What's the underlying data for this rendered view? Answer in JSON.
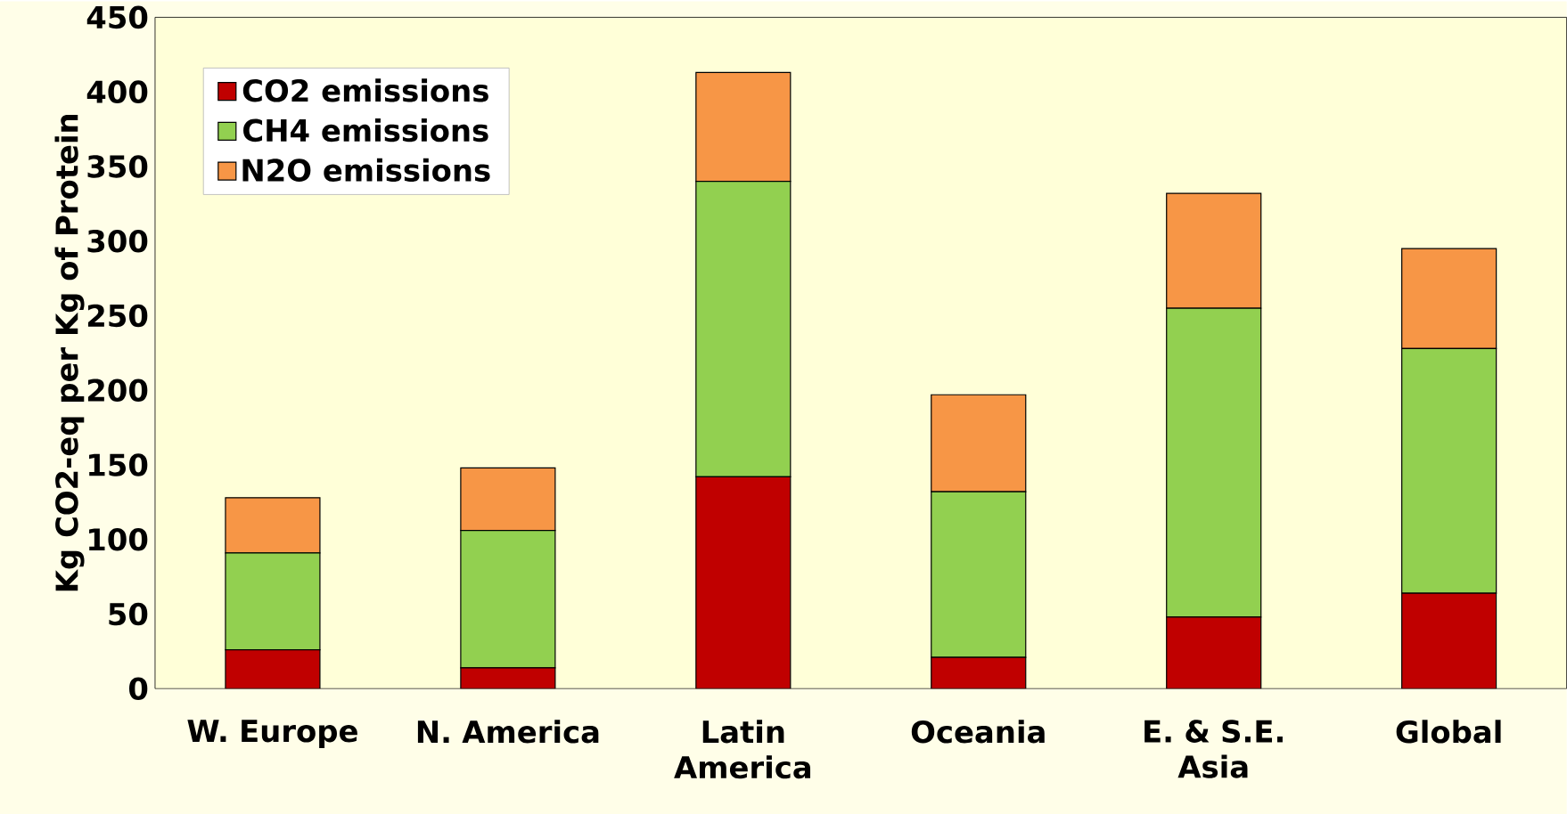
{
  "chart_data": {
    "type": "bar",
    "stacked": true,
    "ylabel": "Kg CO2-eq per Kg of Protein",
    "categories": [
      "W. Europe",
      "N. America",
      "Latin America",
      "Oceania",
      "E. & S.E. Asia",
      "Global"
    ],
    "series": [
      {
        "name": "CO2 emissions",
        "color": "#c00000",
        "values": [
          26,
          14,
          142,
          21,
          48,
          64
        ]
      },
      {
        "name": "CH4 emissions",
        "color": "#92d050",
        "values": [
          65,
          92,
          198,
          111,
          207,
          164
        ]
      },
      {
        "name": "N2O emissions",
        "color": "#f79646",
        "values": [
          37,
          42,
          73,
          65,
          77,
          67
        ]
      }
    ],
    "ylim": [
      0,
      450
    ],
    "yticks": [
      0,
      50,
      100,
      150,
      200,
      250,
      300,
      350,
      400,
      450
    ],
    "legend": "top left",
    "grid": false
  }
}
